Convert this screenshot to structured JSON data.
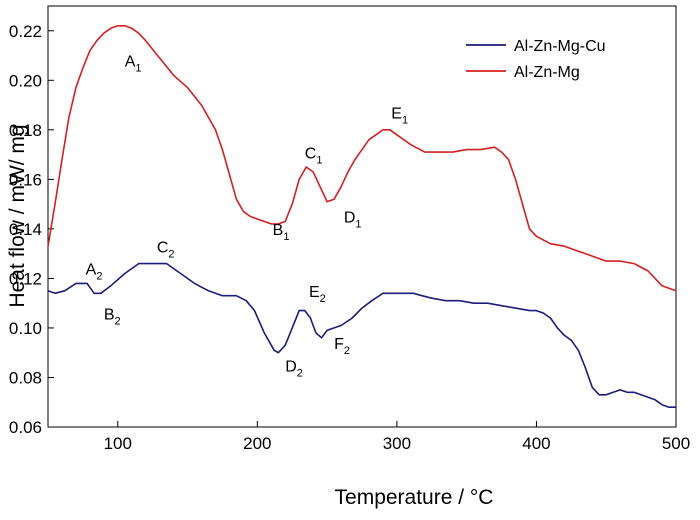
{
  "chart_data": {
    "type": "line",
    "xlabel": "Temperature / °C",
    "ylabel": "Heat flow / mW/ mg",
    "xlim": [
      50,
      500
    ],
    "ylim": [
      0.06,
      0.23
    ],
    "xticks": [
      100,
      200,
      300,
      400,
      500
    ],
    "yticks": [
      0.06,
      0.08,
      0.1,
      0.12,
      0.14,
      0.16,
      0.18,
      0.2,
      0.22
    ],
    "ytick_labels": [
      "0.06",
      "0.08",
      "0.10",
      "0.12",
      "0.14",
      "0.16",
      "0.18",
      "0.20",
      "0.22"
    ],
    "grid": false,
    "legend_position": "top-right",
    "series": [
      {
        "name": "Al-Zn-Mg-Cu",
        "color": "#1c1c7a",
        "x": [
          50,
          55,
          62,
          70,
          78,
          83,
          88,
          95,
          105,
          115,
          125,
          135,
          145,
          155,
          165,
          175,
          185,
          192,
          198,
          205,
          212,
          215,
          220,
          225,
          230,
          234,
          238,
          242,
          246,
          250,
          255,
          260,
          268,
          275,
          282,
          290,
          298,
          305,
          312,
          318,
          325,
          335,
          345,
          355,
          365,
          375,
          385,
          395,
          400,
          405,
          410,
          415,
          420,
          425,
          430,
          435,
          440,
          445,
          450,
          455,
          460,
          465,
          470,
          475,
          480,
          485,
          490,
          495,
          500
        ],
        "y": [
          0.115,
          0.114,
          0.115,
          0.118,
          0.118,
          0.114,
          0.114,
          0.117,
          0.122,
          0.126,
          0.126,
          0.126,
          0.122,
          0.118,
          0.115,
          0.113,
          0.113,
          0.111,
          0.107,
          0.098,
          0.091,
          0.09,
          0.093,
          0.1,
          0.107,
          0.107,
          0.104,
          0.098,
          0.096,
          0.099,
          0.1,
          0.101,
          0.104,
          0.108,
          0.111,
          0.114,
          0.114,
          0.114,
          0.114,
          0.113,
          0.112,
          0.111,
          0.111,
          0.11,
          0.11,
          0.109,
          0.108,
          0.107,
          0.107,
          0.106,
          0.104,
          0.1,
          0.097,
          0.095,
          0.091,
          0.084,
          0.076,
          0.073,
          0.073,
          0.074,
          0.075,
          0.074,
          0.074,
          0.073,
          0.072,
          0.071,
          0.069,
          0.068,
          0.068
        ]
      },
      {
        "name": "Al-Zn-Mg",
        "color": "#d42020",
        "x": [
          50,
          55,
          60,
          65,
          70,
          75,
          80,
          85,
          90,
          95,
          100,
          105,
          110,
          115,
          120,
          130,
          140,
          150,
          160,
          170,
          175,
          180,
          185,
          190,
          195,
          200,
          205,
          210,
          215,
          220,
          225,
          230,
          235,
          240,
          245,
          250,
          255,
          260,
          265,
          270,
          275,
          280,
          285,
          290,
          295,
          300,
          310,
          320,
          330,
          340,
          350,
          360,
          370,
          375,
          380,
          385,
          390,
          395,
          400,
          410,
          420,
          430,
          440,
          450,
          460,
          470,
          480,
          490,
          500
        ],
        "y": [
          0.133,
          0.15,
          0.168,
          0.185,
          0.197,
          0.205,
          0.212,
          0.216,
          0.219,
          0.221,
          0.222,
          0.222,
          0.221,
          0.219,
          0.216,
          0.209,
          0.202,
          0.197,
          0.19,
          0.18,
          0.172,
          0.162,
          0.152,
          0.147,
          0.145,
          0.144,
          0.143,
          0.142,
          0.142,
          0.143,
          0.15,
          0.16,
          0.165,
          0.163,
          0.157,
          0.151,
          0.152,
          0.157,
          0.163,
          0.168,
          0.172,
          0.176,
          0.178,
          0.18,
          0.18,
          0.178,
          0.174,
          0.171,
          0.171,
          0.171,
          0.172,
          0.172,
          0.173,
          0.171,
          0.168,
          0.16,
          0.15,
          0.14,
          0.137,
          0.134,
          0.133,
          0.131,
          0.129,
          0.127,
          0.127,
          0.126,
          0.123,
          0.117,
          0.115
        ]
      }
    ],
    "annotations": [
      {
        "base": "A",
        "sub": "1",
        "x": 105,
        "y": 0.2055
      },
      {
        "base": "B",
        "sub": "1",
        "x": 211,
        "y": 0.1375
      },
      {
        "base": "C",
        "sub": "1",
        "x": 234,
        "y": 0.1685
      },
      {
        "base": "D",
        "sub": "1",
        "x": 262,
        "y": 0.1425
      },
      {
        "base": "E",
        "sub": "1",
        "x": 296,
        "y": 0.1845
      },
      {
        "base": "A",
        "sub": "2",
        "x": 77,
        "y": 0.1215
      },
      {
        "base": "B",
        "sub": "2",
        "x": 90,
        "y": 0.1035
      },
      {
        "base": "C",
        "sub": "2",
        "x": 128,
        "y": 0.1305
      },
      {
        "base": "D",
        "sub": "2",
        "x": 220,
        "y": 0.0825
      },
      {
        "base": "E",
        "sub": "2",
        "x": 237,
        "y": 0.1125
      },
      {
        "base": "F",
        "sub": "2",
        "x": 255,
        "y": 0.0915
      }
    ]
  }
}
